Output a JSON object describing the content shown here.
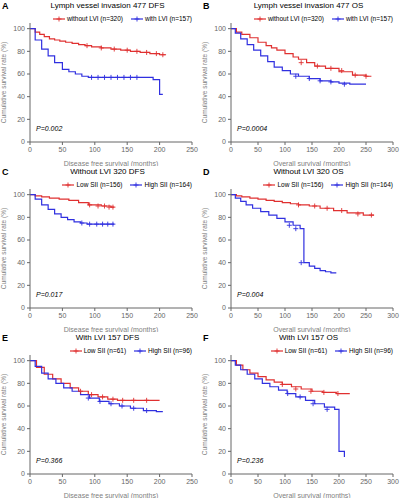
{
  "chart_data": [
    {
      "type": "line",
      "title": "Lymph vessel invasion 477 DFS",
      "annotations": [
        "A",
        "P=0.002"
      ],
      "xlabel": "Disease free survival (months)",
      "ylabel": "Cumulative survival rate (%)",
      "xlim": [
        0,
        250
      ],
      "ylim": [
        0,
        105
      ],
      "xticks": [
        0,
        50,
        100,
        150,
        200,
        250
      ],
      "yticks": [
        0,
        20,
        40,
        60,
        80,
        100
      ],
      "grid": false,
      "legend": "top",
      "series": [
        {
          "name": "without LVI (n=320)",
          "color": "#e03030",
          "line_style": "step",
          "marker": "+",
          "x": [
            0,
            8,
            15,
            22,
            30,
            38,
            46,
            55,
            65,
            75,
            85,
            95,
            110,
            125,
            140,
            155,
            170,
            185,
            200,
            210
          ],
          "values": [
            100,
            97,
            95,
            93,
            91,
            90,
            89,
            88,
            87,
            86,
            85,
            84,
            83,
            82,
            81,
            80,
            79,
            78,
            77,
            77
          ],
          "censors": {
            "x": [
              88,
              110,
              130,
              150,
              165,
              180,
              195,
              205
            ],
            "values": [
              85,
              83,
              82,
              81,
              80,
              79,
              78,
              77
            ]
          }
        },
        {
          "name": "with LVI (n=157)",
          "color": "#3030e0",
          "line_style": "step",
          "marker": "+",
          "x": [
            0,
            8,
            18,
            28,
            38,
            50,
            60,
            70,
            80,
            90,
            185,
            190,
            200,
            205
          ],
          "values": [
            100,
            90,
            82,
            76,
            70,
            64,
            62,
            60,
            58,
            57,
            57,
            55,
            42,
            42
          ],
          "censors": {
            "x": [
              95,
              105,
              115,
              125,
              135,
              145,
              155,
              165
            ],
            "values": [
              57,
              57,
              57,
              57,
              57,
              57,
              57,
              57
            ]
          }
        }
      ]
    },
    {
      "type": "line",
      "title": "Lymph vessel invasion 477 OS",
      "annotations": [
        "B",
        "P=0.0004"
      ],
      "xlabel": "Overall survival (months)",
      "ylabel": "Cumulative survival rate (%)",
      "xlim": [
        0,
        300
      ],
      "ylim": [
        0,
        105
      ],
      "xticks": [
        0,
        50,
        100,
        150,
        200,
        250,
        300
      ],
      "yticks": [
        0,
        20,
        40,
        60,
        80,
        100
      ],
      "grid": false,
      "legend": "top",
      "series": [
        {
          "name": "without LVI (n=320)",
          "color": "#e03030",
          "line_style": "step",
          "marker": "+",
          "x": [
            0,
            10,
            20,
            35,
            50,
            65,
            75,
            85,
            100,
            115,
            125,
            140,
            155,
            175,
            200,
            225,
            250,
            260
          ],
          "values": [
            100,
            97,
            95,
            92,
            88,
            85,
            83,
            81,
            78,
            75,
            73,
            70,
            67,
            65,
            62,
            59,
            58,
            58
          ],
          "censors": {
            "x": [
              130,
              160,
              185,
              205,
              230,
              250
            ],
            "values": [
              70,
              67,
              65,
              63,
              59,
              58
            ]
          }
        },
        {
          "name": "with LVI (n=157)",
          "color": "#3030e0",
          "line_style": "step",
          "marker": "+",
          "x": [
            0,
            8,
            18,
            30,
            42,
            55,
            68,
            80,
            95,
            110,
            125,
            145,
            165,
            185,
            200,
            220,
            250
          ],
          "values": [
            100,
            96,
            91,
            86,
            81,
            76,
            71,
            66,
            63,
            60,
            58,
            56,
            54,
            53,
            52,
            51,
            51
          ],
          "censors": {
            "x": [
              120,
              145,
              165,
              185,
              210
            ],
            "values": [
              58,
              56,
              54,
              53,
              51
            ]
          }
        }
      ]
    },
    {
      "type": "line",
      "title": "Without LVI 320 DFS",
      "annotations": [
        "C",
        "P=0.017"
      ],
      "xlabel": "Disease free survival (months)",
      "ylabel": "Cumulative survival rate (%)",
      "xlim": [
        0,
        250
      ],
      "ylim": [
        0,
        105
      ],
      "xticks": [
        0,
        50,
        100,
        150,
        200,
        250
      ],
      "yticks": [
        0,
        20,
        40,
        60,
        80,
        100
      ],
      "grid": false,
      "legend": "top",
      "series": [
        {
          "name": "Low SII (n=156)",
          "color": "#e03030",
          "line_style": "step",
          "marker": "+",
          "x": [
            0,
            8,
            18,
            30,
            45,
            60,
            75,
            90,
            110,
            125,
            130
          ],
          "values": [
            100,
            99,
            98,
            97,
            96,
            95,
            93,
            91,
            90,
            89,
            89
          ],
          "censors": {
            "x": [
              92,
              105,
              115,
              122,
              128
            ],
            "values": [
              91,
              90,
              90,
              89,
              89
            ]
          }
        },
        {
          "name": "High SII (n=164)",
          "color": "#3030e0",
          "line_style": "step",
          "marker": "+",
          "x": [
            0,
            8,
            18,
            28,
            38,
            48,
            58,
            68,
            78,
            88,
            98,
            110,
            120,
            130
          ],
          "values": [
            100,
            96,
            91,
            87,
            83,
            80,
            78,
            76,
            75,
            74,
            74,
            74,
            74,
            74
          ],
          "censors": {
            "x": [
              80,
              92,
              103,
              112,
              120,
              128
            ],
            "values": [
              75,
              74,
              74,
              74,
              74,
              74
            ]
          }
        }
      ]
    },
    {
      "type": "line",
      "title": "Without LVI 320 OS",
      "annotations": [
        "D",
        "P=0.004"
      ],
      "xlabel": "Overall survival (months)",
      "ylabel": "Cumulative survival rate (%)",
      "xlim": [
        0,
        300
      ],
      "ylim": [
        0,
        105
      ],
      "xticks": [
        0,
        50,
        100,
        150,
        200,
        250,
        300
      ],
      "yticks": [
        0,
        20,
        40,
        60,
        80,
        100
      ],
      "grid": false,
      "legend": "top",
      "series": [
        {
          "name": "Low SII (n=156)",
          "color": "#e03030",
          "line_style": "step",
          "marker": "+",
          "x": [
            0,
            10,
            20,
            35,
            50,
            65,
            80,
            95,
            110,
            125,
            145,
            165,
            190,
            215,
            245,
            265
          ],
          "values": [
            100,
            99,
            98,
            97,
            96,
            95,
            94,
            93,
            92,
            91,
            90,
            88,
            86,
            84,
            82,
            82
          ],
          "censors": {
            "x": [
              125,
              155,
              178,
              205,
              235,
              260
            ],
            "values": [
              91,
              90,
              88,
              86,
              83,
              82
            ]
          }
        },
        {
          "name": "High SII (n=164)",
          "color": "#3030e0",
          "line_style": "step",
          "marker": "+",
          "x": [
            0,
            8,
            18,
            28,
            40,
            55,
            70,
            85,
            100,
            115,
            128,
            135,
            145,
            155,
            165,
            175,
            185,
            195
          ],
          "values": [
            100,
            97,
            94,
            91,
            88,
            85,
            82,
            79,
            76,
            73,
            70,
            40,
            37,
            35,
            33,
            32,
            31,
            31
          ],
          "censors": {
            "x": [
              108,
              120,
              130
            ],
            "values": [
              73,
              70,
              40
            ]
          }
        }
      ]
    },
    {
      "type": "line",
      "title": "With LVI 157 DFS",
      "annotations": [
        "E",
        "P=0.366"
      ],
      "xlabel": "Disease free survival (months)",
      "ylabel": "Cumulative survival rate (%)",
      "xlim": [
        0,
        250
      ],
      "ylim": [
        0,
        105
      ],
      "xticks": [
        0,
        50,
        100,
        150,
        200,
        250
      ],
      "yticks": [
        0,
        20,
        40,
        60,
        80,
        100
      ],
      "grid": false,
      "legend": "top",
      "series": [
        {
          "name": "Low SII (n=61)",
          "color": "#e03030",
          "line_style": "step",
          "marker": "+",
          "x": [
            0,
            10,
            22,
            35,
            48,
            62,
            75,
            90,
            105,
            120,
            135,
            155,
            175,
            200
          ],
          "values": [
            100,
            94,
            88,
            84,
            80,
            76,
            73,
            70,
            68,
            66,
            65,
            65,
            65,
            65
          ],
          "censors": {
            "x": [
              78,
              95,
              112,
              128,
              143,
              160,
              180
            ],
            "values": [
              73,
              70,
              68,
              66,
              65,
              65,
              65
            ]
          }
        },
        {
          "name": "High SII (n=96)",
          "color": "#3030e0",
          "line_style": "step",
          "marker": "+",
          "x": [
            0,
            8,
            18,
            28,
            40,
            52,
            65,
            78,
            92,
            107,
            122,
            138,
            155,
            175,
            195,
            205
          ],
          "values": [
            100,
            95,
            89,
            84,
            80,
            76,
            73,
            70,
            67,
            64,
            62,
            60,
            58,
            56,
            55,
            55
          ],
          "censors": {
            "x": [
              90,
              108,
              125,
              142,
              160,
              180
            ],
            "values": [
              67,
              64,
              62,
              60,
              58,
              56
            ]
          }
        }
      ]
    },
    {
      "type": "line",
      "title": "With LVI 157 OS",
      "annotations": [
        "F",
        "P=0.236"
      ],
      "xlabel": "Overall survival (months)",
      "ylabel": "Cumulative survival rate (%)",
      "xlim": [
        0,
        300
      ],
      "ylim": [
        0,
        105
      ],
      "xticks": [
        0,
        50,
        100,
        150,
        200,
        250,
        300
      ],
      "yticks": [
        0,
        20,
        40,
        60,
        80,
        100
      ],
      "grid": false,
      "legend": "top",
      "series": [
        {
          "name": "Low SII (n=61)",
          "color": "#e03030",
          "line_style": "step",
          "marker": "+",
          "x": [
            0,
            10,
            22,
            35,
            50,
            65,
            80,
            95,
            112,
            130,
            150,
            170,
            195,
            220
          ],
          "values": [
            100,
            96,
            92,
            89,
            86,
            83,
            81,
            79,
            77,
            75,
            73,
            72,
            71,
            71
          ],
          "censors": {
            "x": [
              95,
              120,
              148,
              172,
              198
            ],
            "values": [
              79,
              75,
              73,
              72,
              71
            ]
          }
        },
        {
          "name": "High SII (n=96)",
          "color": "#3030e0",
          "line_style": "step",
          "marker": "+",
          "x": [
            0,
            8,
            18,
            30,
            44,
            58,
            72,
            88,
            104,
            120,
            138,
            155,
            173,
            192,
            200,
            210
          ],
          "values": [
            100,
            96,
            92,
            88,
            84,
            80,
            77,
            74,
            71,
            68,
            65,
            62,
            59,
            57,
            20,
            15
          ],
          "censors": {
            "x": [
              105,
              128,
              152,
              178
            ],
            "values": [
              71,
              68,
              62,
              57
            ]
          }
        }
      ]
    }
  ]
}
